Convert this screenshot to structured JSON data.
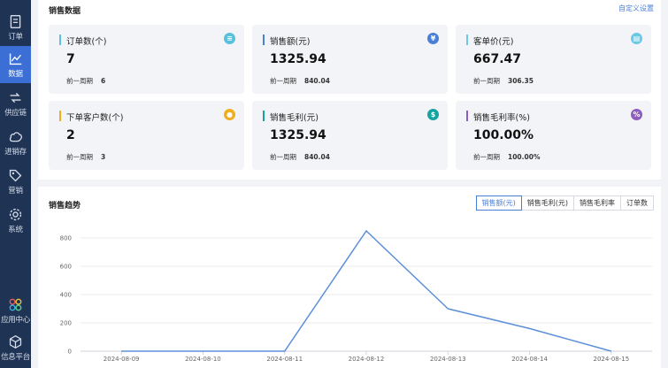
{
  "sidebar": {
    "items": [
      {
        "label": "订单",
        "icon": "order-icon"
      },
      {
        "label": "数据",
        "icon": "chart-line-icon",
        "active": true
      },
      {
        "label": "供应链",
        "icon": "supply-chain-icon"
      },
      {
        "label": "进销存",
        "icon": "inventory-icon"
      },
      {
        "label": "营销",
        "icon": "tag-icon"
      },
      {
        "label": "系统",
        "icon": "gear-icon"
      },
      {
        "label": "应用中心",
        "icon": "app-center-icon"
      },
      {
        "label": "信息平台",
        "icon": "cube-icon"
      }
    ]
  },
  "sales": {
    "title": "销售数据",
    "custom_link": "自定义设置",
    "prev_label": "前一周期",
    "cards": [
      {
        "title": "订单数(个)",
        "value": "7",
        "prev": "6",
        "color": "#5bc0de",
        "icon": "list-icon",
        "glyph": "≡"
      },
      {
        "title": "销售额(元)",
        "value": "1325.94",
        "prev": "840.04",
        "color": "#4a7fd6",
        "icon": "yen-icon",
        "glyph": "¥"
      },
      {
        "title": "客单价(元)",
        "value": "667.47",
        "prev": "306.35",
        "color": "#6cc9e6",
        "icon": "clipboard-icon",
        "glyph": "▤"
      },
      {
        "title": "下单客户数(个)",
        "value": "2",
        "prev": "3",
        "color": "#f0ad1e",
        "icon": "user-icon",
        "glyph": "●"
      },
      {
        "title": "销售毛利(元)",
        "value": "1325.94",
        "prev": "840.04",
        "color": "#17a2a0",
        "icon": "money-bag-icon",
        "glyph": "$"
      },
      {
        "title": "销售毛利率(%)",
        "value": "100.00%",
        "prev": "100.00%",
        "color": "#8e5bbf",
        "icon": "percent-icon",
        "glyph": "%"
      }
    ]
  },
  "trend": {
    "title": "销售趋势",
    "tabs": [
      "销售额(元)",
      "销售毛利(元)",
      "销售毛利率",
      "订单数"
    ]
  },
  "chart_data": {
    "type": "line",
    "x": [
      "2024-08-09",
      "2024-08-10",
      "2024-08-11",
      "2024-08-12",
      "2024-08-13",
      "2024-08-14",
      "2024-08-15"
    ],
    "series": [
      {
        "values": [
          0,
          0,
          0,
          850,
          300,
          160,
          0
        ],
        "color": "#5b8fd9"
      }
    ],
    "yticks": [
      0,
      200,
      400,
      600,
      800
    ],
    "ylim": [
      0,
      800
    ],
    "grid": true
  }
}
